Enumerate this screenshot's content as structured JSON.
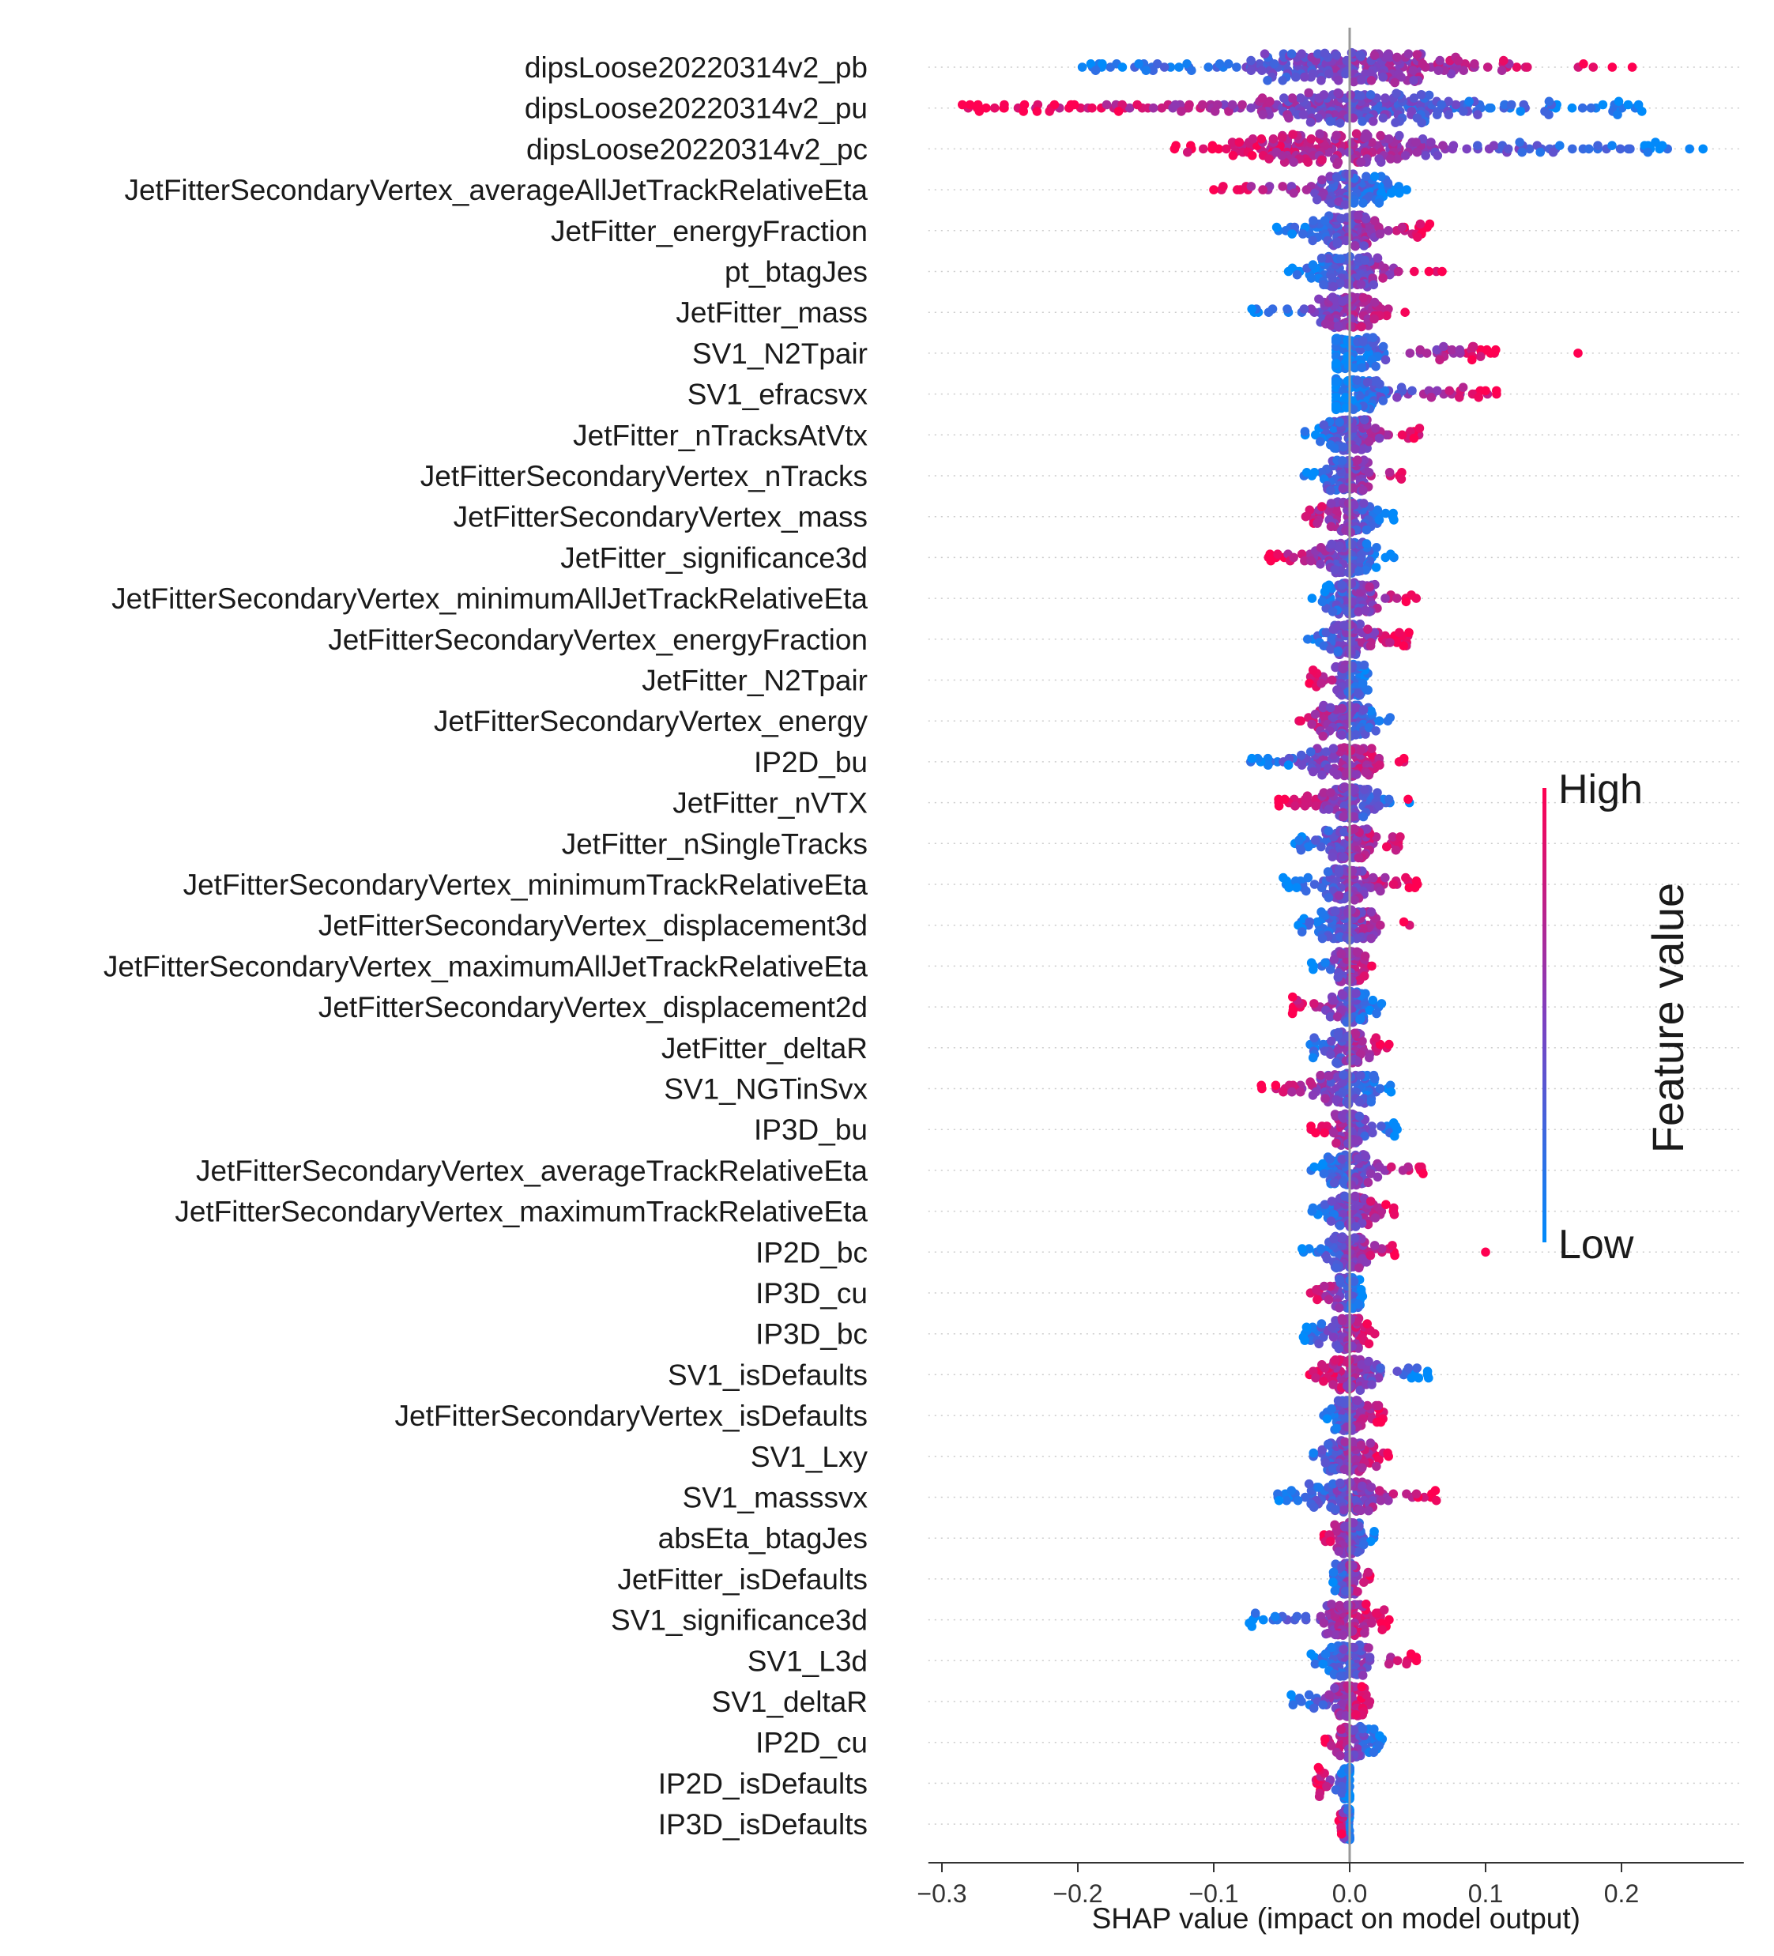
{
  "chart_data": {
    "type": "scatter",
    "subtype": "beeswarm",
    "title": "",
    "xlabel": "SHAP value (impact on model output)",
    "ylabel": "",
    "xlim": [
      -0.31,
      0.29
    ],
    "xticks": [
      -0.3,
      -0.2,
      -0.1,
      0.0,
      0.1,
      0.2
    ],
    "xtick_labels": [
      "−0.3",
      "−0.2",
      "−0.1",
      "0.0",
      "0.1",
      "0.2"
    ],
    "grid": false,
    "row_guides": "dotted",
    "zero_line": true,
    "colorbar": {
      "label": "Feature value",
      "high_label": "High",
      "low_label": "Low",
      "high_color": "#ff0051",
      "mid_color": "#7f3fbf",
      "low_color": "#008bfb",
      "placement": "right"
    },
    "features": [
      {
        "name": "dipsLoose20220314v2_pb",
        "range": [
          -0.2,
          0.21
        ],
        "trend": 1,
        "high_extra": [],
        "low_extra": []
      },
      {
        "name": "dipsLoose20220314v2_pu",
        "range": [
          -0.285,
          0.215
        ],
        "trend": -1,
        "high_extra": [
          -0.285,
          -0.24,
          -0.23,
          -0.205,
          -0.17
        ],
        "low_extra": [
          0.215
        ]
      },
      {
        "name": "dipsLoose20220314v2_pc",
        "range": [
          -0.13,
          0.26
        ],
        "trend": -1,
        "high_extra": [],
        "low_extra": [
          0.23,
          0.26
        ]
      },
      {
        "name": "JetFitterSecondaryVertex_averageAllJetTrackRelativeEta",
        "range": [
          -0.1,
          0.045
        ],
        "trend": -1,
        "high_extra": [
          -0.1
        ],
        "low_extra": []
      },
      {
        "name": "JetFitter_energyFraction",
        "range": [
          -0.055,
          0.06
        ],
        "trend": 1,
        "high_extra": [],
        "low_extra": []
      },
      {
        "name": "pt_btagJes",
        "range": [
          -0.045,
          0.065
        ],
        "trend": 1,
        "high_extra": [
          0.068
        ],
        "low_extra": [
          -0.045
        ]
      },
      {
        "name": "JetFitter_mass",
        "range": [
          -0.075,
          0.05
        ],
        "trend": 1,
        "high_extra": [],
        "low_extra": [
          -0.072
        ]
      },
      {
        "name": "SV1_N2Tpair",
        "range": [
          -0.01,
          0.11
        ],
        "trend": 1,
        "high_extra": [
          0.09,
          0.168
        ],
        "low_extra": []
      },
      {
        "name": "SV1_efracsvx",
        "range": [
          -0.01,
          0.11
        ],
        "trend": 1,
        "high_extra": [
          0.1,
          0.108
        ],
        "low_extra": []
      },
      {
        "name": "JetFitter_nTracksAtVtx",
        "range": [
          -0.035,
          0.055
        ],
        "trend": 1,
        "high_extra": [],
        "low_extra": []
      },
      {
        "name": "JetFitterSecondaryVertex_nTracks",
        "range": [
          -0.035,
          0.04
        ],
        "trend": 1,
        "high_extra": [],
        "low_extra": []
      },
      {
        "name": "JetFitterSecondaryVertex_mass",
        "range": [
          -0.04,
          0.035
        ],
        "trend": -1,
        "high_extra": [],
        "low_extra": []
      },
      {
        "name": "JetFitter_significance3d",
        "range": [
          -0.06,
          0.035
        ],
        "trend": -1,
        "high_extra": [
          -0.058
        ],
        "low_extra": []
      },
      {
        "name": "JetFitterSecondaryVertex_minimumAllJetTrackRelativeEta",
        "range": [
          -0.03,
          0.05
        ],
        "trend": 1,
        "high_extra": [],
        "low_extra": []
      },
      {
        "name": "JetFitterSecondaryVertex_energyFraction",
        "range": [
          -0.035,
          0.045
        ],
        "trend": 1,
        "high_extra": [],
        "low_extra": []
      },
      {
        "name": "JetFitter_N2Tpair",
        "range": [
          -0.03,
          0.015
        ],
        "trend": -1,
        "high_extra": [],
        "low_extra": []
      },
      {
        "name": "JetFitterSecondaryVertex_energy",
        "range": [
          -0.045,
          0.03
        ],
        "trend": -1,
        "high_extra": [],
        "low_extra": []
      },
      {
        "name": "IP2D_bu",
        "range": [
          -0.075,
          0.04
        ],
        "trend": 1,
        "high_extra": [],
        "low_extra": [
          -0.072,
          -0.045
        ]
      },
      {
        "name": "JetFitter_nVTX",
        "range": [
          -0.055,
          0.045
        ],
        "trend": -1,
        "high_extra": [
          -0.052,
          0.043
        ],
        "low_extra": []
      },
      {
        "name": "JetFitter_nSingleTracks",
        "range": [
          -0.045,
          0.04
        ],
        "trend": 1,
        "high_extra": [],
        "low_extra": []
      },
      {
        "name": "JetFitterSecondaryVertex_minimumTrackRelativeEta",
        "range": [
          -0.05,
          0.05
        ],
        "trend": 1,
        "high_extra": [
          0.048
        ],
        "low_extra": []
      },
      {
        "name": "JetFitterSecondaryVertex_displacement3d",
        "range": [
          -0.04,
          0.045
        ],
        "trend": 1,
        "high_extra": [],
        "low_extra": []
      },
      {
        "name": "JetFitterSecondaryVertex_maximumAllJetTrackRelativeEta",
        "range": [
          -0.03,
          0.02
        ],
        "trend": 1,
        "high_extra": [],
        "low_extra": []
      },
      {
        "name": "JetFitterSecondaryVertex_displacement2d",
        "range": [
          -0.045,
          0.025
        ],
        "trend": -1,
        "high_extra": [
          -0.042
        ],
        "low_extra": []
      },
      {
        "name": "JetFitter_deltaR",
        "range": [
          -0.035,
          0.03
        ],
        "trend": 1,
        "high_extra": [],
        "low_extra": []
      },
      {
        "name": "SV1_NGTinSvx",
        "range": [
          -0.065,
          0.035
        ],
        "trend": -1,
        "high_extra": [
          -0.065
        ],
        "low_extra": []
      },
      {
        "name": "IP3D_bu",
        "range": [
          -0.03,
          0.035
        ],
        "trend": -1,
        "high_extra": [],
        "low_extra": [
          0.033
        ]
      },
      {
        "name": "JetFitterSecondaryVertex_averageTrackRelativeEta",
        "range": [
          -0.03,
          0.055
        ],
        "trend": 1,
        "high_extra": [
          0.054
        ],
        "low_extra": []
      },
      {
        "name": "JetFitterSecondaryVertex_maximumTrackRelativeEta",
        "range": [
          -0.03,
          0.035
        ],
        "trend": 1,
        "high_extra": [],
        "low_extra": []
      },
      {
        "name": "IP2D_bc",
        "range": [
          -0.035,
          0.035
        ],
        "trend": 1,
        "high_extra": [
          0.1
        ],
        "low_extra": [
          -0.035
        ]
      },
      {
        "name": "IP3D_cu",
        "range": [
          -0.03,
          0.01
        ],
        "trend": -1,
        "high_extra": [],
        "low_extra": []
      },
      {
        "name": "IP3D_bc",
        "range": [
          -0.035,
          0.02
        ],
        "trend": 1,
        "high_extra": [],
        "low_extra": [
          -0.033
        ]
      },
      {
        "name": "SV1_isDefaults",
        "range": [
          -0.03,
          0.058
        ],
        "trend": -1,
        "high_extra": [],
        "low_extra": [
          0.058
        ]
      },
      {
        "name": "JetFitterSecondaryVertex_isDefaults",
        "range": [
          -0.02,
          0.025
        ],
        "trend": 1,
        "high_extra": [],
        "low_extra": []
      },
      {
        "name": "SV1_Lxy",
        "range": [
          -0.035,
          0.03
        ],
        "trend": 1,
        "high_extra": [],
        "low_extra": []
      },
      {
        "name": "SV1_masssvx",
        "range": [
          -0.055,
          0.065
        ],
        "trend": 1,
        "high_extra": [
          0.063
        ],
        "low_extra": [
          -0.052
        ]
      },
      {
        "name": "absEta_btagJes",
        "range": [
          -0.02,
          0.02
        ],
        "trend": -1,
        "high_extra": [],
        "low_extra": []
      },
      {
        "name": "JetFitter_isDefaults",
        "range": [
          -0.015,
          0.015
        ],
        "trend": 1,
        "high_extra": [],
        "low_extra": []
      },
      {
        "name": "SV1_significance3d",
        "range": [
          -0.075,
          0.03
        ],
        "trend": 1,
        "high_extra": [],
        "low_extra": [
          -0.072
        ]
      },
      {
        "name": "SV1_L3d",
        "range": [
          -0.03,
          0.05
        ],
        "trend": 1,
        "high_extra": [
          0.049
        ],
        "low_extra": []
      },
      {
        "name": "SV1_deltaR",
        "range": [
          -0.045,
          0.02
        ],
        "trend": 1,
        "high_extra": [],
        "low_extra": [
          -0.043
        ]
      },
      {
        "name": "IP2D_cu",
        "range": [
          -0.02,
          0.025
        ],
        "trend": -1,
        "high_extra": [],
        "low_extra": [
          0.022
        ]
      },
      {
        "name": "IP2D_isDefaults",
        "range": [
          -0.025,
          0.0
        ],
        "trend": -1,
        "high_extra": [
          -0.023
        ],
        "low_extra": []
      },
      {
        "name": "IP3D_isDefaults",
        "range": [
          -0.008,
          0.0
        ],
        "trend": -1,
        "high_extra": [
          -0.006
        ],
        "low_extra": []
      }
    ]
  }
}
